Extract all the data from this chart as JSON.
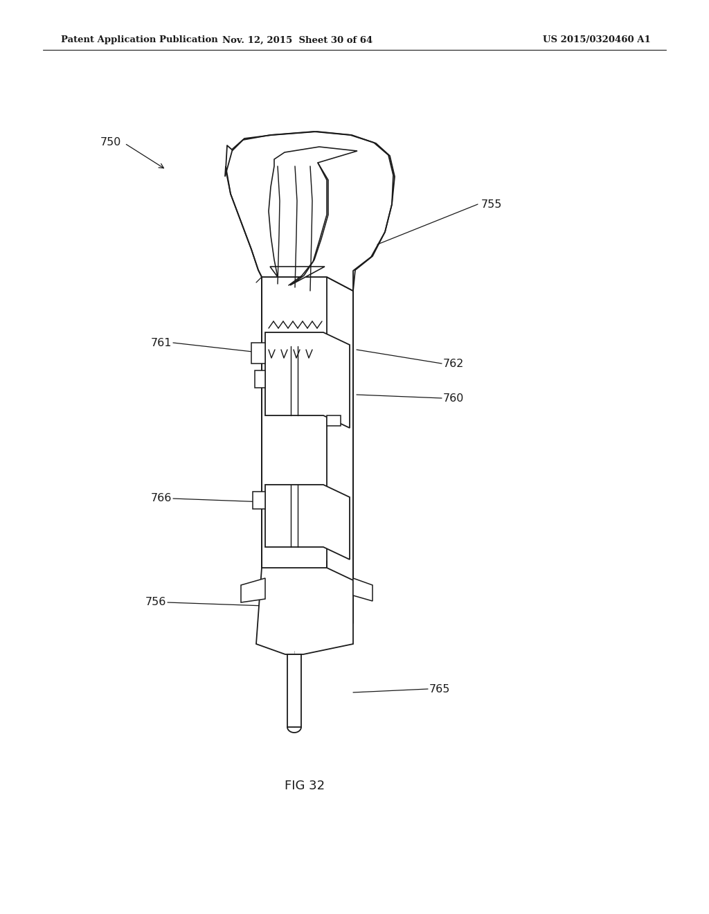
{
  "header_left": "Patent Application Publication",
  "header_mid": "Nov. 12, 2015  Sheet 30 of 64",
  "header_right": "US 2015/0320460 A1",
  "fig_label": "FIG 32",
  "background": "#ffffff",
  "line_color": "#1a1a1a",
  "lw": 1.3
}
